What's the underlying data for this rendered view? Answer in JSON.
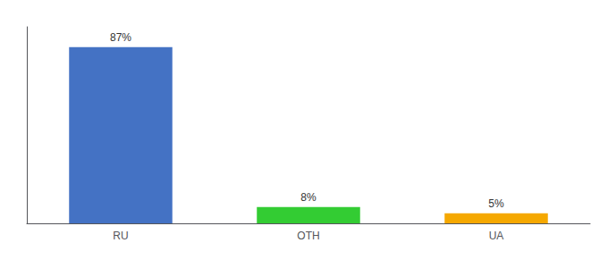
{
  "chart_data": {
    "type": "bar",
    "categories": [
      "RU",
      "OTH",
      "UA"
    ],
    "values": [
      87,
      8,
      5
    ],
    "value_labels": [
      "87%",
      "8%",
      "5%"
    ],
    "colors": [
      "#4472c4",
      "#33cc33",
      "#f5a800"
    ],
    "ylim": [
      0,
      97
    ],
    "grid": false,
    "data_labels": true,
    "tick_labels": "x"
  }
}
